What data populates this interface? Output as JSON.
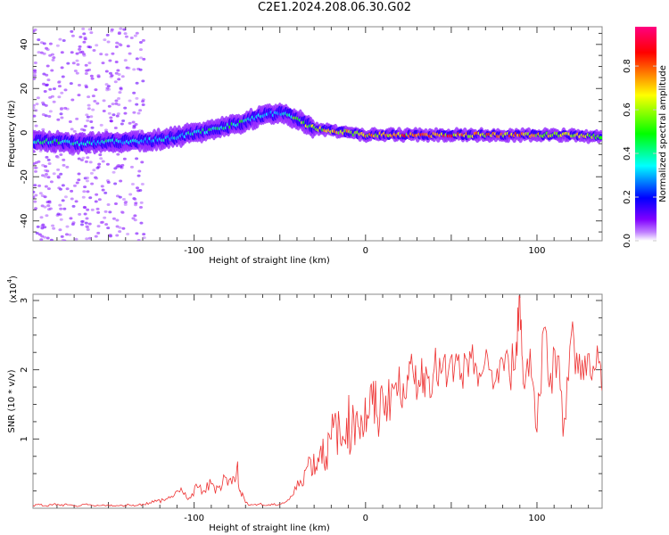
{
  "title": "C2E1.2024.208.06.30.G02",
  "chart_data": [
    {
      "type": "heatmap",
      "title": "C2E1.2024.208.06.30.G02",
      "xlabel": "Height of straight line (km)",
      "ylabel": "Frequency (Hz)",
      "xlim": [
        -194,
        138
      ],
      "ylim": [
        -49,
        48
      ],
      "xticks": [
        -100,
        0,
        100
      ],
      "yticks": [
        -40,
        -20,
        0,
        20,
        40
      ],
      "colorbar": {
        "label": "Normalized spectral amplitude",
        "range": [
          0,
          0.98
        ],
        "ticks": [
          "0.0",
          "0.2",
          "0.4",
          "0.6",
          "0.8"
        ],
        "colors": [
          "#ffffff",
          "#c080ff",
          "#8000ff",
          "#0000ff",
          "#00ffff",
          "#00ff00",
          "#ffff00",
          "#ff8000",
          "#ff0000",
          "#ff0080"
        ]
      },
      "ridge": {
        "x": [
          -194,
          -180,
          -165,
          -150,
          -135,
          -120,
          -110,
          -100,
          -90,
          -80,
          -70,
          -60,
          -50,
          -45,
          -40,
          -35,
          -30,
          -20,
          -10,
          0,
          20,
          40,
          60,
          80,
          100,
          120,
          138
        ],
        "frequency": [
          -4,
          -4,
          -5,
          -4,
          -4,
          -3,
          -2,
          0,
          1,
          3,
          5,
          8,
          9,
          8,
          6,
          4,
          2,
          1,
          0,
          -1,
          -1,
          -1,
          -1,
          -1,
          -1,
          -1,
          -2
        ],
        "amplitude": [
          0.4,
          0.45,
          0.4,
          0.4,
          0.35,
          0.35,
          0.4,
          0.4,
          0.45,
          0.45,
          0.45,
          0.35,
          0.3,
          0.45,
          0.55,
          0.6,
          0.65,
          0.75,
          0.7,
          0.7,
          0.8,
          0.8,
          0.8,
          0.8,
          0.75,
          0.7,
          0.6
        ]
      }
    },
    {
      "type": "line",
      "xlabel": "Height of straight line (km)",
      "ylabel": "SNR (10 * v/v)",
      "yscale_label": "(x10",
      "yscale_exp": "4",
      "xlim": [
        -194,
        138
      ],
      "ylim": [
        0,
        3.09
      ],
      "xticks": [
        -100,
        0,
        100
      ],
      "yticks": [
        1,
        2,
        3
      ],
      "color": "#ee3333",
      "x": [
        -194,
        -190,
        -186,
        -182,
        -178,
        -174,
        -170,
        -166,
        -162,
        -158,
        -154,
        -150,
        -146,
        -142,
        -138,
        -134,
        -130,
        -126,
        -122,
        -118,
        -114,
        -110,
        -106,
        -102,
        -98,
        -94,
        -90,
        -86,
        -82,
        -78,
        -75,
        -73,
        -70,
        -66,
        -62,
        -58,
        -54,
        -50,
        -46,
        -42,
        -38,
        -35,
        -32,
        -29,
        -26,
        -23,
        -20,
        -17,
        -14,
        -11,
        -8,
        -5,
        -2,
        1,
        4,
        7,
        10,
        13,
        16,
        19,
        22,
        25,
        28,
        31,
        34,
        37,
        40,
        44,
        48,
        52,
        56,
        60,
        64,
        68,
        72,
        76,
        80,
        84,
        88,
        90,
        92,
        96,
        100,
        104,
        108,
        112,
        116,
        120,
        124,
        128,
        132,
        136,
        138
      ],
      "values": [
        0.04,
        0.05,
        0.03,
        0.06,
        0.04,
        0.05,
        0.03,
        0.04,
        0.05,
        0.03,
        0.04,
        0.05,
        0.03,
        0.04,
        0.05,
        0.04,
        0.06,
        0.08,
        0.1,
        0.12,
        0.15,
        0.25,
        0.2,
        0.15,
        0.3,
        0.25,
        0.35,
        0.3,
        0.45,
        0.35,
        0.6,
        0.25,
        0.08,
        0.05,
        0.06,
        0.04,
        0.05,
        0.06,
        0.1,
        0.2,
        0.4,
        0.55,
        0.7,
        0.6,
        0.9,
        0.75,
        1.0,
        1.2,
        0.9,
        1.3,
        1.1,
        1.4,
        1.25,
        1.35,
        1.5,
        1.3,
        1.65,
        1.5,
        1.75,
        1.7,
        1.8,
        1.85,
        1.9,
        1.85,
        1.95,
        1.9,
        2.0,
        1.95,
        1.9,
        2.05,
        1.95,
        1.9,
        2.1,
        1.95,
        2.0,
        1.85,
        2.15,
        1.9,
        2.4,
        3.05,
        1.8,
        2.3,
        1.1,
        2.6,
        1.95,
        2.2,
        1.3,
        2.5,
        1.95,
        2.2,
        1.85,
        2.1,
        1.7
      ]
    }
  ]
}
